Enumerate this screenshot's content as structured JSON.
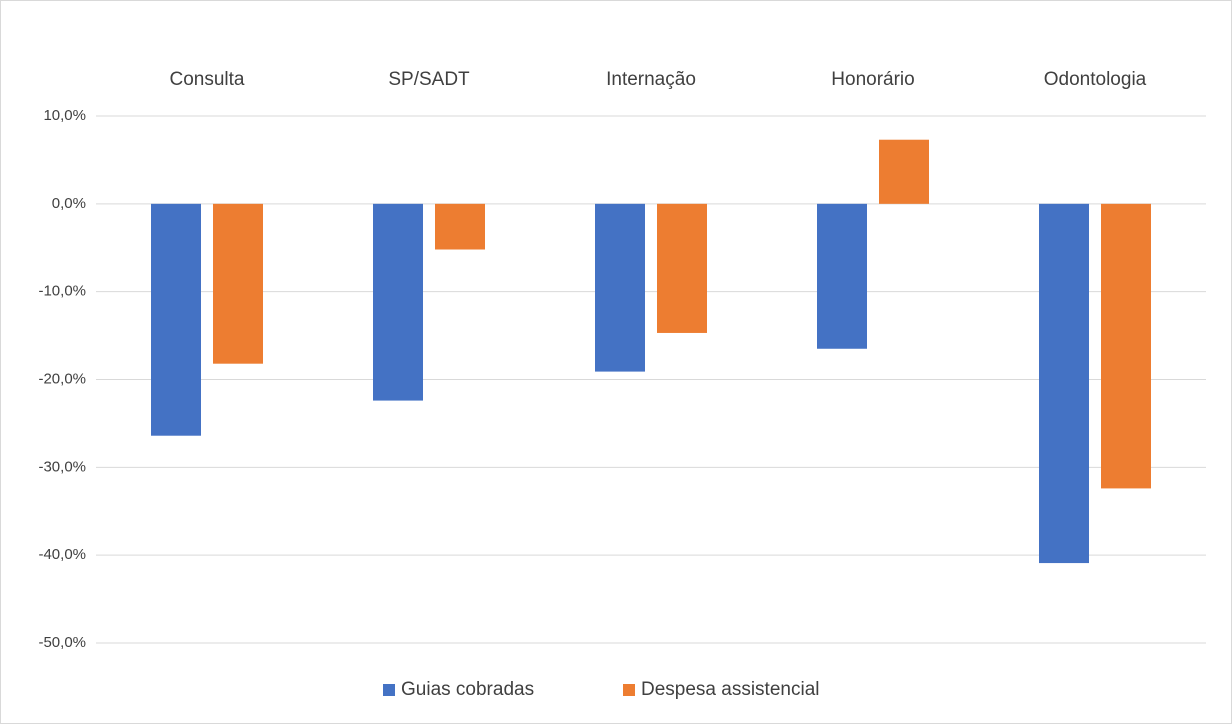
{
  "chart_data": {
    "type": "bar",
    "categories": [
      "Consulta",
      "SP/SADT",
      "Internação",
      "Honorário",
      "Odontologia"
    ],
    "series": [
      {
        "name": "Guias cobradas",
        "color": "#4472c4",
        "values": [
          -26.4,
          -22.4,
          -19.1,
          -16.5,
          -40.9
        ]
      },
      {
        "name": "Despesa assistencial",
        "color": "#ed7d31",
        "values": [
          -18.2,
          -5.2,
          -14.7,
          7.3,
          -32.4
        ]
      }
    ],
    "ylim": [
      -50,
      10
    ],
    "yticks": [
      {
        "value": 10,
        "label": "10,0%"
      },
      {
        "value": 0,
        "label": "0,0%"
      },
      {
        "value": -10,
        "label": "-10,0%"
      },
      {
        "value": -20,
        "label": "-20,0%"
      },
      {
        "value": -30,
        "label": "-30,0%"
      },
      {
        "value": -40,
        "label": "-40,0%"
      },
      {
        "value": -50,
        "label": "-50,0%"
      }
    ],
    "grid": true,
    "legend": "bottom"
  }
}
